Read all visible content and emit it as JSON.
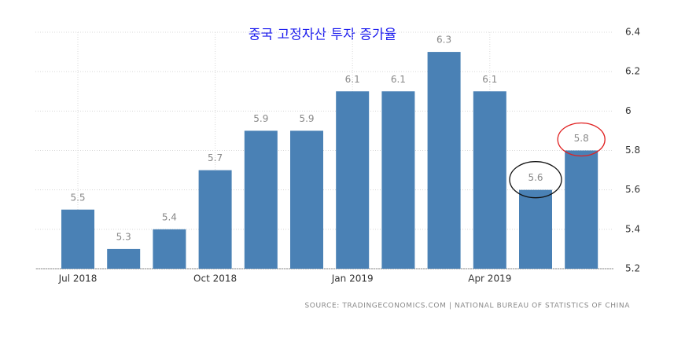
{
  "chart_data": {
    "type": "bar",
    "title": "중국 고정자산 투자 증가율",
    "source": "SOURCE: TRADINGECONOMICS.COM | NATIONAL BUREAU OF STATISTICS OF CHINA",
    "categories": [
      "Jul 2018",
      null,
      null,
      "Oct 2018",
      null,
      null,
      "Jan 2019",
      null,
      null,
      "Apr 2019",
      null,
      null
    ],
    "values": [
      5.5,
      5.3,
      5.4,
      5.7,
      5.9,
      5.9,
      6.1,
      6.1,
      6.3,
      6.1,
      5.6,
      5.8
    ],
    "color": "#4a81b5",
    "ylim": [
      5.2,
      6.4
    ],
    "yticks": [
      5.2,
      5.4,
      5.6,
      5.8,
      6,
      6.2,
      6.4
    ],
    "grid": true
  }
}
